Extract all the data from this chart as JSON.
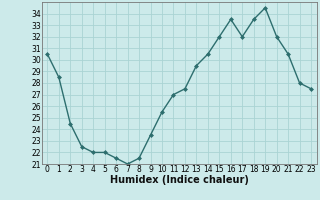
{
  "x": [
    0,
    1,
    2,
    3,
    4,
    5,
    6,
    7,
    8,
    9,
    10,
    11,
    12,
    13,
    14,
    15,
    16,
    17,
    18,
    19,
    20,
    21,
    22,
    23
  ],
  "y": [
    30.5,
    28.5,
    24.5,
    22.5,
    22.0,
    22.0,
    21.5,
    21.0,
    21.5,
    23.5,
    25.5,
    27.0,
    27.5,
    29.5,
    30.5,
    32.0,
    33.5,
    32.0,
    33.5,
    34.5,
    32.0,
    30.5,
    28.0,
    27.5
  ],
  "line_color": "#2d6e6e",
  "marker": "D",
  "marker_size": 2.0,
  "bg_color": "#cceaea",
  "grid_color": "#aad4d4",
  "xlabel": "Humidex (Indice chaleur)",
  "ylim": [
    21,
    35
  ],
  "xlim": [
    -0.5,
    23.5
  ],
  "yticks": [
    21,
    22,
    23,
    24,
    25,
    26,
    27,
    28,
    29,
    30,
    31,
    32,
    33,
    34
  ],
  "xticks": [
    0,
    1,
    2,
    3,
    4,
    5,
    6,
    7,
    8,
    9,
    10,
    11,
    12,
    13,
    14,
    15,
    16,
    17,
    18,
    19,
    20,
    21,
    22,
    23
  ],
  "xlabel_fontsize": 7.0,
  "tick_fontsize": 5.5,
  "line_width": 1.0
}
